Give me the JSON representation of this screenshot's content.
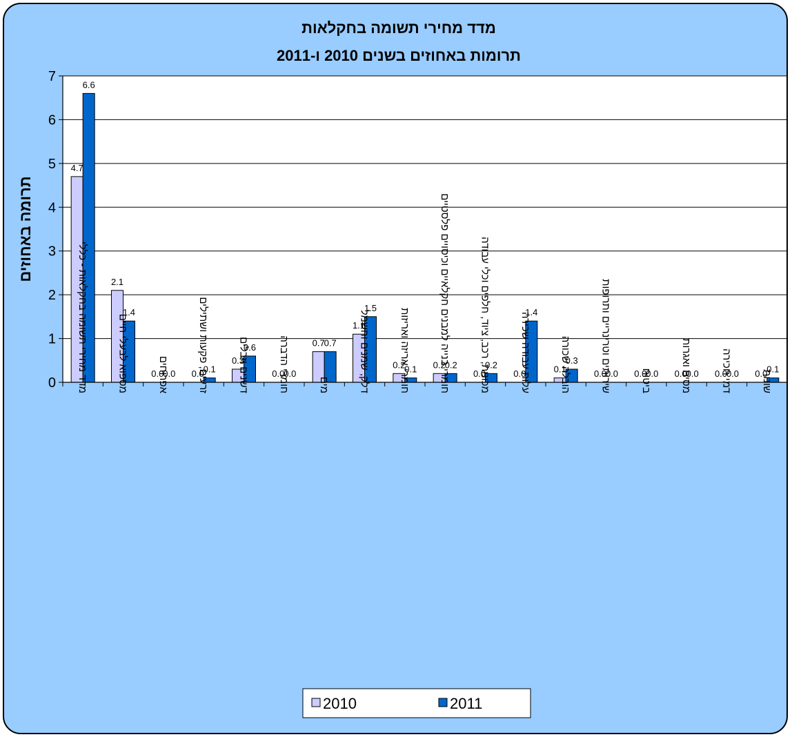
{
  "chart_data": {
    "type": "bar",
    "title": "מדד מחירי תשומה בחקלאות",
    "subtitle": "תרומות באחוזים בשנים 2010 ו-2011",
    "ylabel": "תרומה באחוזים",
    "xlabel": "",
    "ylim": [
      0,
      7
    ],
    "yticks": [
      "0",
      "1",
      "2",
      "3",
      "4",
      "5",
      "6",
      "7"
    ],
    "grid": true,
    "legend_position": "bottom",
    "categories": [
      "מדד מחירי תשומה בחקלאות - כללי",
      "מספוא לבעלי חיים",
      "אפרוחים",
      "זרעים, פקעות ושתילים",
      "דשנים וזבלים",
      "חומרי הדברה",
      "מים",
      "דלק, שמנים וחשמל",
      "חומרי אריזה ואריזות",
      "חומרי בנייה למבנים חקלאיים וכיסויים פלסטיים",
      "מכונות, רכב, ציוד, חלפים וכלי עבודה",
      "עלות עבודה שכירה",
      "הובלה שכורה",
      "שירותים וטרינריים ותרופות",
      "ביטוח",
      "מסים ואגרות",
      "דמי חכירה",
      "שונות"
    ],
    "series": [
      {
        "name": "2010",
        "color": "#ccccff",
        "values": [
          4.7,
          2.1,
          0.0,
          0.0,
          0.3,
          0.0,
          0.7,
          1.1,
          0.2,
          0.2,
          0.0,
          0.0,
          0.1,
          0.0,
          0.0,
          0.0,
          0.0,
          0.0
        ],
        "labels": [
          "4.7",
          "2.1",
          "0.0",
          "0.0",
          "0.3",
          "0.0",
          "0.7",
          "1.1",
          "0.2",
          "0.2",
          "0.0",
          "0.0",
          "0.1",
          "0.0",
          "0.0",
          "0.0",
          "0.0",
          "0.0"
        ]
      },
      {
        "name": "2011",
        "color": "#0066cc",
        "values": [
          6.6,
          1.4,
          0.0,
          0.1,
          0.6,
          0.0,
          0.7,
          1.5,
          0.1,
          0.2,
          0.2,
          1.4,
          0.3,
          0.0,
          0.0,
          0.0,
          0.0,
          0.1
        ],
        "labels": [
          "6.6",
          "1.4",
          "0.0",
          "0.1",
          "0.6",
          "0.0",
          "0.7",
          "1.5",
          "0.1",
          "0.2",
          "0.2",
          "1.4",
          "0.3",
          "0.0",
          "0.0",
          "0.0",
          "0.0",
          "0.1"
        ]
      }
    ]
  }
}
